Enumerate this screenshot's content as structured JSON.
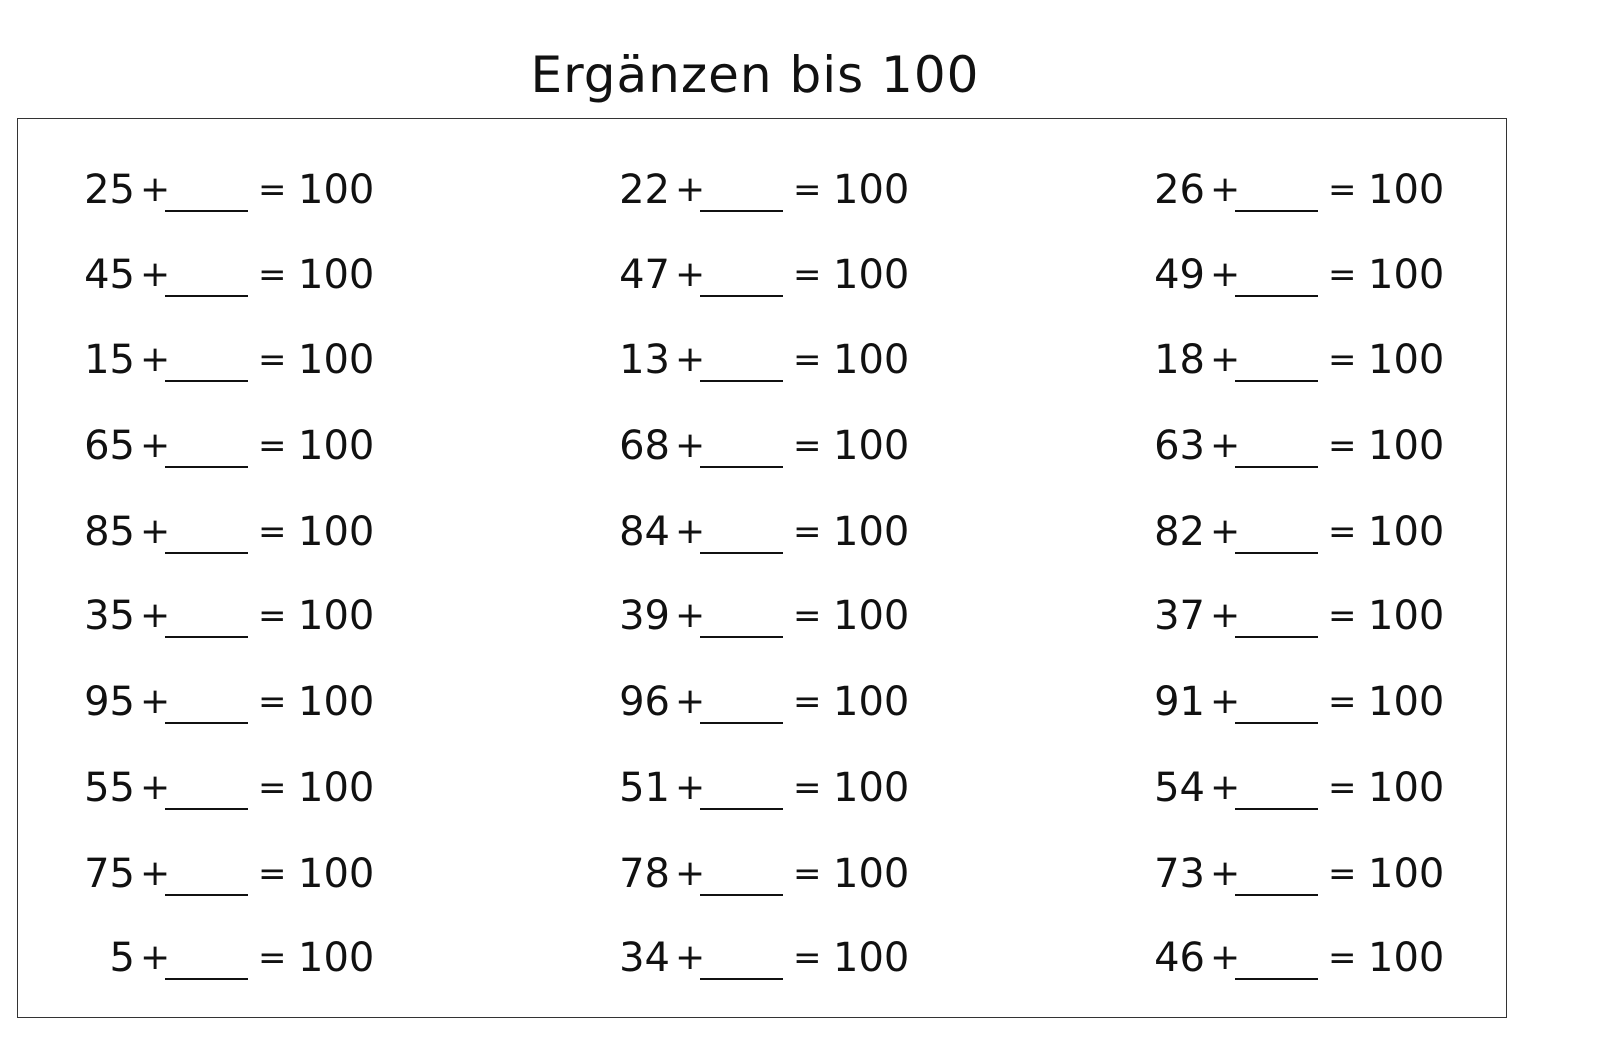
{
  "title": "Ergänzen bis 100",
  "worksheet": {
    "plus": "+",
    "equals": "=",
    "target": "100",
    "columns": [
      [
        "25",
        "45",
        "15",
        "65",
        "85",
        "35",
        "95",
        "55",
        "75",
        "5"
      ],
      [
        "22",
        "47",
        "13",
        "68",
        "84",
        "39",
        "96",
        "51",
        "78",
        "34"
      ],
      [
        "26",
        "49",
        "18",
        "63",
        "82",
        "37",
        "91",
        "54",
        "73",
        "46"
      ]
    ]
  }
}
